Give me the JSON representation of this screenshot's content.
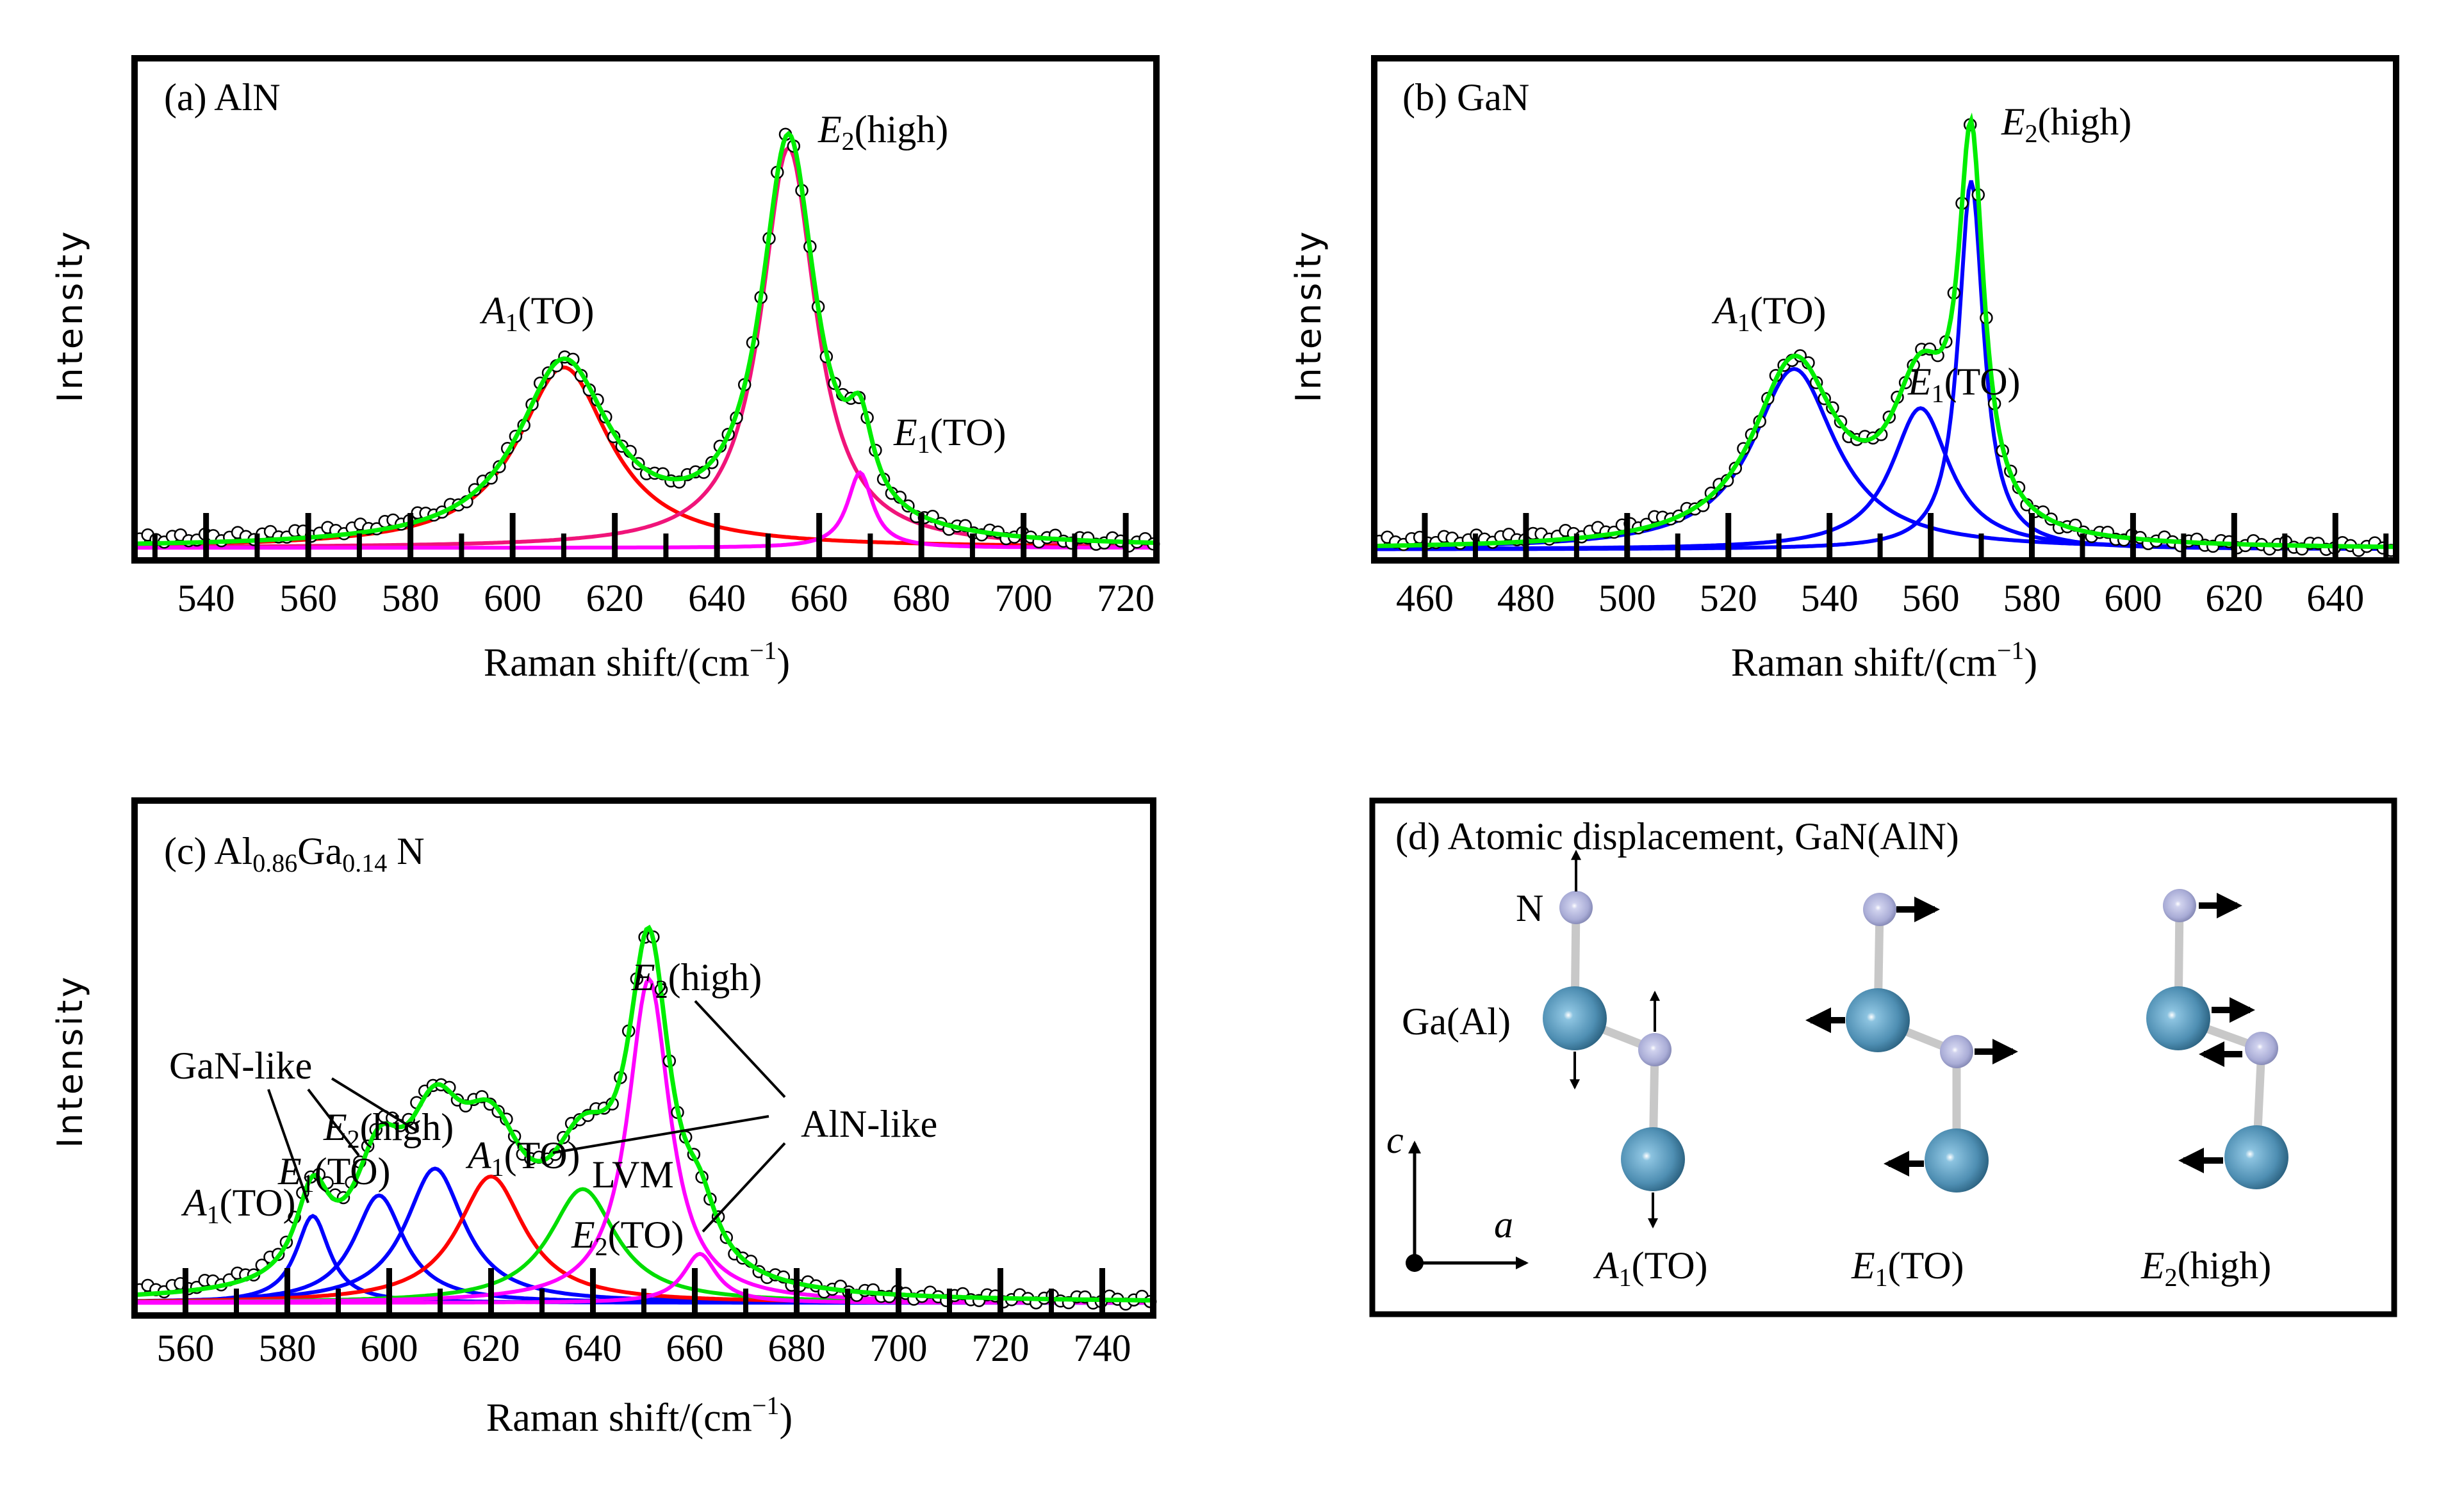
{
  "chart_data": [
    {
      "type": "line",
      "panel_title": [
        {
          "t": "(a) AlN"
        }
      ],
      "xlabel": "Raman shift/(cm",
      "xlabel_sup": "−1",
      "xlabel_end": ")",
      "ylabel": "Intensity",
      "xlim": [
        526,
        726
      ],
      "ylim": [
        -5,
        315
      ],
      "xticks": [
        540,
        560,
        580,
        600,
        620,
        640,
        660,
        680,
        700,
        720
      ],
      "xtick_labels": [
        "540",
        "560",
        "580",
        "600",
        "620",
        "640",
        "660",
        "680",
        "700",
        "720"
      ],
      "baseline": 3,
      "fit_color": "#00ee00",
      "data_marker": "open-circle",
      "components": [
        {
          "label": {
            "main": "A",
            "sub": "1",
            "rest": "(TO)"
          },
          "center": 610,
          "fwhm": 22,
          "amplitude": 115,
          "color": "#ff0000"
        },
        {
          "label": {
            "main": "E",
            "sub": "2",
            "rest": "(high)"
          },
          "center": 654,
          "fwhm": 13,
          "amplitude": 255,
          "color": "#f0147a"
        },
        {
          "label": {
            "main": "E",
            "sub": "1",
            "rest": "(TO)"
          },
          "center": 668,
          "fwhm": 6,
          "amplitude": 48,
          "color": "#ff00ff"
        }
      ],
      "grid": false,
      "legend": "none"
    },
    {
      "type": "line",
      "panel_title": [
        {
          "t": "(b) GaN"
        }
      ],
      "xlabel": "Raman shift/(cm",
      "xlabel_sup": "−1",
      "xlabel_end": ")",
      "ylabel": "Intensity",
      "xlim": [
        450,
        652
      ],
      "ylim": [
        -5,
        315
      ],
      "xticks": [
        460,
        480,
        500,
        520,
        540,
        560,
        580,
        600,
        620,
        640
      ],
      "xtick_labels": [
        "460",
        "480",
        "500",
        "520",
        "540",
        "560",
        "580",
        "600",
        "620",
        "640"
      ],
      "baseline": 2,
      "fit_color": "#00ee00",
      "data_marker": "open-circle",
      "components": [
        {
          "label": {
            "main": "A",
            "sub": "1",
            "rest": "(TO)"
          },
          "center": 533,
          "fwhm": 20,
          "amplitude": 115,
          "color": "#0000ff"
        },
        {
          "label": {
            "main": "E",
            "sub": "1",
            "rest": "(TO)"
          },
          "center": 558,
          "fwhm": 14,
          "amplitude": 90,
          "color": "#0000ff"
        },
        {
          "label": {
            "main": "E",
            "sub": "2",
            "rest": "(high)"
          },
          "center": 568,
          "fwhm": 6,
          "amplitude": 235,
          "color": "#0000ff"
        }
      ],
      "grid": false,
      "legend": "none"
    },
    {
      "type": "line",
      "panel_title": [
        {
          "t": "(c) Al"
        },
        {
          "t": "0.86",
          "sub": true
        },
        {
          "t": "Ga"
        },
        {
          "t": "0.14",
          "sub": true
        },
        {
          "t": " N"
        }
      ],
      "xlabel": "Raman shift/(cm",
      "xlabel_sup": "−1",
      "xlabel_end": ")",
      "ylabel": "Intensity",
      "xlim": [
        550,
        750
      ],
      "ylim": [
        -5,
        321
      ],
      "xticks": [
        560,
        580,
        600,
        620,
        640,
        660,
        680,
        700,
        720,
        740
      ],
      "xtick_labels": [
        "560",
        "580",
        "600",
        "620",
        "640",
        "660",
        "680",
        "700",
        "720",
        "740"
      ],
      "baseline": 3,
      "fit_color": "#00ee00",
      "data_marker": "open-circle",
      "components": [
        {
          "label": {
            "main": "A",
            "sub": "1",
            "rest": "(TO)"
          },
          "group": "GaN-like",
          "center": 585,
          "fwhm": 8,
          "amplitude": 55,
          "color": "#0000ff"
        },
        {
          "label": {
            "main": "E",
            "sub": "1",
            "rest": "(TO)"
          },
          "group": "GaN-like",
          "center": 598,
          "fwhm": 12,
          "amplitude": 68,
          "color": "#0000ff"
        },
        {
          "label": {
            "main": "E",
            "sub": "2",
            "rest": "(high)"
          },
          "group": "GaN-like",
          "center": 609,
          "fwhm": 14,
          "amplitude": 85,
          "color": "#0000ff"
        },
        {
          "label": {
            "main": "A",
            "sub": "1",
            "rest": "(TO)"
          },
          "group": "AlN-like",
          "center": 620,
          "fwhm": 16,
          "amplitude": 80,
          "color": "#ff0000"
        },
        {
          "label": {
            "main": "",
            "sub": "",
            "rest": "LVM"
          },
          "center": 638,
          "fwhm": 16,
          "amplitude": 72,
          "color": "#00dd00"
        },
        {
          "label": {
            "main": "E",
            "sub": "2",
            "rest": "(high)"
          },
          "group": "AlN-like",
          "center": 651,
          "fwhm": 10,
          "amplitude": 205,
          "color": "#ff00ff"
        },
        {
          "label": {
            "main": "E",
            "sub": "2",
            "rest": "(TO)"
          },
          "group": "AlN-like",
          "center": 661,
          "fwhm": 8,
          "amplitude": 31,
          "color": "#ff00ff"
        }
      ],
      "group_labels": [
        "GaN-like",
        "AlN-like"
      ],
      "grid": false,
      "legend": "none"
    }
  ],
  "diagram": {
    "title": "(d) Atomic displacement, GaN(AlN)",
    "atom_labels": {
      "n": "N",
      "ga": "Ga(Al)"
    },
    "axes": {
      "c": "c",
      "a": "a"
    },
    "modes": [
      {
        "main": "A",
        "sub": "1",
        "rest": "(TO)"
      },
      {
        "main": "E",
        "sub": "1",
        "rest": "(TO)"
      },
      {
        "main": "E",
        "sub": "2",
        "rest": "(high)"
      }
    ],
    "colors": {
      "ga_atom": "#4f8fb3",
      "n_atom": "#a9acd6",
      "bond": "#c8c8c8"
    }
  }
}
